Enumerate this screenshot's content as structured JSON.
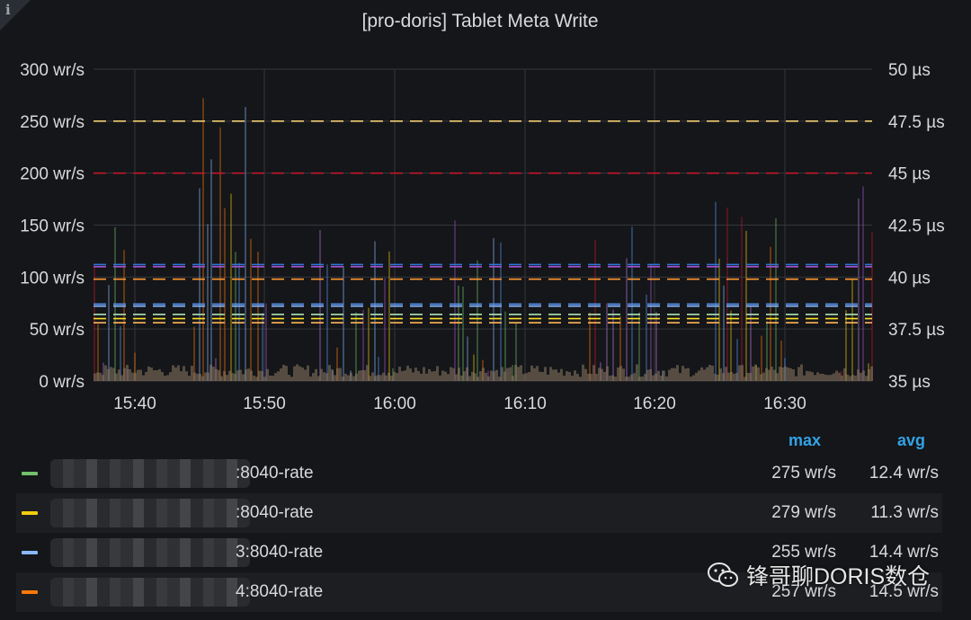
{
  "panel": {
    "title": "[pro-doris] Tablet Meta Write",
    "info_icon": "i"
  },
  "chart_data": {
    "type": "line",
    "title": "[pro-doris] Tablet Meta Write",
    "x": [
      "15:40",
      "15:50",
      "16:00",
      "16:10",
      "16:20",
      "16:30"
    ],
    "y_left": {
      "ticks": [
        "300 wr/s",
        "250 wr/s",
        "200 wr/s",
        "150 wr/s",
        "100 wr/s",
        "50 wr/s",
        "0 wr/s"
      ],
      "ylim": [
        0,
        300
      ],
      "unit": "wr/s"
    },
    "y_right": {
      "ticks": [
        "50 µs",
        "47.5 µs",
        "45 µs",
        "42.5 µs",
        "40 µs",
        "37.5 µs",
        "35 µs"
      ],
      "ylim": [
        35,
        50
      ],
      "unit": "µs"
    },
    "dashed_series_right_axis": [
      {
        "color": "#f2cc73",
        "values": [
          47.5
        ]
      },
      {
        "color": "#c4162a",
        "values": [
          45.0
        ]
      },
      {
        "color": "#3274d9",
        "values": [
          40.6
        ]
      },
      {
        "color": "#a352cc",
        "values": [
          40.5
        ]
      },
      {
        "color": "#ff9830",
        "values": [
          39.9
        ]
      },
      {
        "color": "#5794f2",
        "values": [
          38.7
        ]
      },
      {
        "color": "#8ab8ff",
        "values": [
          38.6
        ]
      },
      {
        "color": "#b0e3b5",
        "values": [
          38.2
        ]
      },
      {
        "color": "#fade2a",
        "values": [
          38.0
        ]
      },
      {
        "color": "#ffb357",
        "values": [
          37.8
        ]
      }
    ],
    "grid": true,
    "legend": "bottom"
  },
  "legend": {
    "header_max": "max",
    "header_avg": "avg",
    "rows": [
      {
        "name": ":8040-rate",
        "color": "#73bf69",
        "max": "275 wr/s",
        "avg": "12.4 wr/s"
      },
      {
        "name": ":8040-rate",
        "color": "#f2cc0c",
        "max": "279 wr/s",
        "avg": "11.3 wr/s"
      },
      {
        "name": "3:8040-rate",
        "color": "#8ab8ff",
        "max": "255 wr/s",
        "avg": "14.4 wr/s"
      },
      {
        "name": "4:8040-rate",
        "color": "#ff780a",
        "max": "257 wr/s",
        "avg": "14.5 wr/s"
      }
    ]
  },
  "watermark": {
    "text": "锋哥聊DORIS数仓"
  }
}
